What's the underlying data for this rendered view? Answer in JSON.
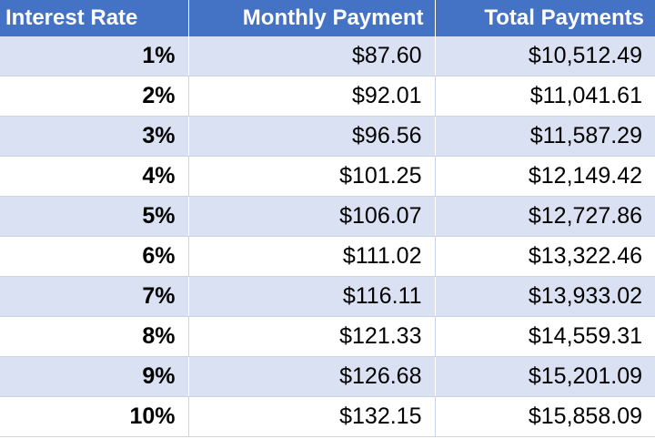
{
  "table": {
    "header": [
      "Interest Rate",
      "Monthly Payment",
      "Total Payments"
    ],
    "rows": [
      [
        "1%",
        "$87.60",
        "$10,512.49"
      ],
      [
        "2%",
        "$92.01",
        "$11,041.61"
      ],
      [
        "3%",
        "$96.56",
        "$11,587.29"
      ],
      [
        "4%",
        "$101.25",
        "$12,149.42"
      ],
      [
        "5%",
        "$106.07",
        "$12,727.86"
      ],
      [
        "6%",
        "$111.02",
        "$13,322.46"
      ],
      [
        "7%",
        "$116.11",
        "$13,933.02"
      ],
      [
        "8%",
        "$121.33",
        "$14,559.31"
      ],
      [
        "9%",
        "$126.68",
        "$15,201.09"
      ],
      [
        "10%",
        "$132.15",
        "$15,858.09"
      ]
    ]
  }
}
